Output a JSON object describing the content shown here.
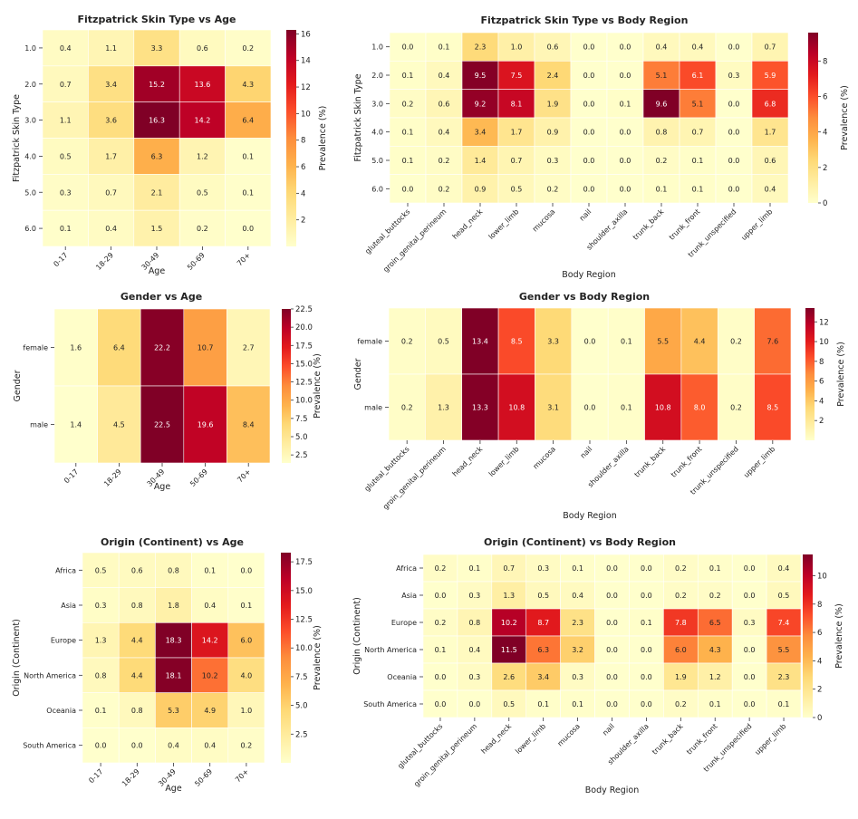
{
  "charts": [
    {
      "type": "heatmap",
      "title": "Fitzpatrick Skin Type vs Age",
      "xlabel": "Age",
      "ylabel": "Fitzpatrick Skin Type",
      "colorbar_label": "Prevalence (%)",
      "colormap": "YlOrRd",
      "colorbar_range": [
        0,
        16.3
      ],
      "colorbar_ticks": [
        2,
        4,
        6,
        8,
        10,
        12,
        14,
        16
      ],
      "x_categories": [
        "0-17",
        "18-29",
        "30-49",
        "50-69",
        "70+"
      ],
      "y_categories": [
        "1.0",
        "2.0",
        "3.0",
        "4.0",
        "5.0",
        "6.0"
      ],
      "values": [
        [
          0.4,
          1.1,
          3.3,
          0.6,
          0.2
        ],
        [
          0.7,
          3.4,
          15.2,
          13.6,
          4.3
        ],
        [
          1.1,
          3.6,
          16.3,
          14.2,
          6.4
        ],
        [
          0.5,
          1.7,
          6.3,
          1.2,
          0.1
        ],
        [
          0.3,
          0.7,
          2.1,
          0.5,
          0.1
        ],
        [
          0.1,
          0.4,
          1.5,
          0.2,
          0.0
        ]
      ]
    },
    {
      "type": "heatmap",
      "title": "Fitzpatrick Skin Type vs Body Region",
      "xlabel": "Body Region",
      "ylabel": "Fitzpatrick Skin Type",
      "colorbar_label": "Prevalence (%)",
      "colormap": "YlOrRd",
      "colorbar_range": [
        0,
        9.6
      ],
      "colorbar_ticks": [
        0,
        2,
        4,
        6,
        8
      ],
      "x_categories": [
        "gluteal_buttocks",
        "groin_genital_perineum",
        "head_neck",
        "lower_limb",
        "mucosa",
        "nail",
        "shoulder_axilla",
        "trunk_back",
        "trunk_front",
        "trunk_unspecified",
        "upper_limb"
      ],
      "y_categories": [
        "1.0",
        "2.0",
        "3.0",
        "4.0",
        "5.0",
        "6.0"
      ],
      "values": [
        [
          0.0,
          0.1,
          2.3,
          1.0,
          0.6,
          0.0,
          0.0,
          0.4,
          0.4,
          0.0,
          0.7
        ],
        [
          0.1,
          0.4,
          9.5,
          7.5,
          2.4,
          0.0,
          0.0,
          5.1,
          6.1,
          0.3,
          5.9
        ],
        [
          0.2,
          0.6,
          9.2,
          8.1,
          1.9,
          0.0,
          0.1,
          9.6,
          5.1,
          0.0,
          6.8
        ],
        [
          0.1,
          0.4,
          3.4,
          1.7,
          0.9,
          0.0,
          0.0,
          0.8,
          0.7,
          0.0,
          1.7
        ],
        [
          0.1,
          0.2,
          1.4,
          0.7,
          0.3,
          0.0,
          0.0,
          0.2,
          0.1,
          0.0,
          0.6
        ],
        [
          0.0,
          0.2,
          0.9,
          0.5,
          0.2,
          0.0,
          0.0,
          0.1,
          0.1,
          0.0,
          0.4
        ]
      ]
    },
    {
      "type": "heatmap",
      "title": "Gender vs Age",
      "xlabel": "Age",
      "ylabel": "Gender",
      "colorbar_label": "Prevalence (%)",
      "colormap": "YlOrRd",
      "colorbar_range": [
        1.4,
        22.5
      ],
      "colorbar_ticks": [
        2.5,
        5.0,
        7.5,
        10.0,
        12.5,
        15.0,
        17.5,
        20.0,
        22.5
      ],
      "x_categories": [
        "0-17",
        "18-29",
        "30-49",
        "50-69",
        "70+"
      ],
      "y_categories": [
        "female",
        "male"
      ],
      "values": [
        [
          1.6,
          6.4,
          22.2,
          10.7,
          2.7
        ],
        [
          1.4,
          4.5,
          22.5,
          19.6,
          8.4
        ]
      ]
    },
    {
      "type": "heatmap",
      "title": "Gender vs Body Region",
      "xlabel": "Body Region",
      "ylabel": "Gender",
      "colorbar_label": "Prevalence (%)",
      "colormap": "YlOrRd",
      "colorbar_range": [
        0,
        13.4
      ],
      "colorbar_ticks": [
        2,
        4,
        6,
        8,
        10,
        12
      ],
      "x_categories": [
        "gluteal_buttocks",
        "groin_genital_perineum",
        "head_neck",
        "lower_limb",
        "mucosa",
        "nail",
        "shoulder_axilla",
        "trunk_back",
        "trunk_front",
        "trunk_unspecified",
        "upper_limb"
      ],
      "y_categories": [
        "female",
        "male"
      ],
      "values": [
        [
          0.2,
          0.5,
          13.4,
          8.5,
          3.3,
          0.0,
          0.1,
          5.5,
          4.4,
          0.2,
          7.6
        ],
        [
          0.2,
          1.3,
          13.3,
          10.8,
          3.1,
          0.0,
          0.1,
          10.8,
          8.0,
          0.2,
          8.5
        ]
      ]
    },
    {
      "type": "heatmap",
      "title": "Origin (Continent) vs Age",
      "xlabel": "Age",
      "ylabel": "Origin (Continent)",
      "colorbar_label": "Prevalence (%)",
      "colormap": "YlOrRd",
      "colorbar_range": [
        0,
        18.3
      ],
      "colorbar_ticks": [
        2.5,
        5.0,
        7.5,
        10.0,
        12.5,
        15.0,
        17.5
      ],
      "x_categories": [
        "0-17",
        "18-29",
        "30-49",
        "50-69",
        "70+"
      ],
      "y_categories": [
        "Africa",
        "Asia",
        "Europe",
        "North America",
        "Oceania",
        "South America"
      ],
      "values": [
        [
          0.5,
          0.6,
          0.8,
          0.1,
          0.0
        ],
        [
          0.3,
          0.8,
          1.8,
          0.4,
          0.1
        ],
        [
          1.3,
          4.4,
          18.3,
          14.2,
          6.0
        ],
        [
          0.8,
          4.4,
          18.1,
          10.2,
          4.0
        ],
        [
          0.1,
          0.8,
          5.3,
          4.9,
          1.0
        ],
        [
          0.0,
          0.0,
          0.4,
          0.4,
          0.2
        ]
      ]
    },
    {
      "type": "heatmap",
      "title": "Origin (Continent) vs Body Region",
      "xlabel": "Body Region",
      "ylabel": "Origin (Continent)",
      "colorbar_label": "Prevalence (%)",
      "colormap": "YlOrRd",
      "colorbar_range": [
        0,
        11.5
      ],
      "colorbar_ticks": [
        0,
        2,
        4,
        6,
        8,
        10
      ],
      "x_categories": [
        "gluteal_buttocks",
        "groin_genital_perineum",
        "head_neck",
        "lower_limb",
        "mucosa",
        "nail",
        "shoulder_axilla",
        "trunk_back",
        "trunk_front",
        "trunk_unspecified",
        "upper_limb"
      ],
      "y_categories": [
        "Africa",
        "Asia",
        "Europe",
        "North America",
        "Oceania",
        "South America"
      ],
      "values": [
        [
          0.2,
          0.1,
          0.7,
          0.3,
          0.1,
          0.0,
          0.0,
          0.2,
          0.1,
          0.0,
          0.4
        ],
        [
          0.0,
          0.3,
          1.3,
          0.5,
          0.4,
          0.0,
          0.0,
          0.2,
          0.2,
          0.0,
          0.5
        ],
        [
          0.2,
          0.8,
          10.2,
          8.7,
          2.3,
          0.0,
          0.1,
          7.8,
          6.5,
          0.3,
          7.4
        ],
        [
          0.1,
          0.4,
          11.5,
          6.3,
          3.2,
          0.0,
          0.0,
          6.0,
          4.3,
          0.0,
          5.5
        ],
        [
          0.0,
          0.3,
          2.6,
          3.4,
          0.3,
          0.0,
          0.0,
          1.9,
          1.2,
          0.0,
          2.3
        ],
        [
          0.0,
          0.0,
          0.5,
          0.1,
          0.1,
          0.0,
          0.0,
          0.2,
          0.1,
          0.0,
          0.1
        ]
      ]
    }
  ]
}
